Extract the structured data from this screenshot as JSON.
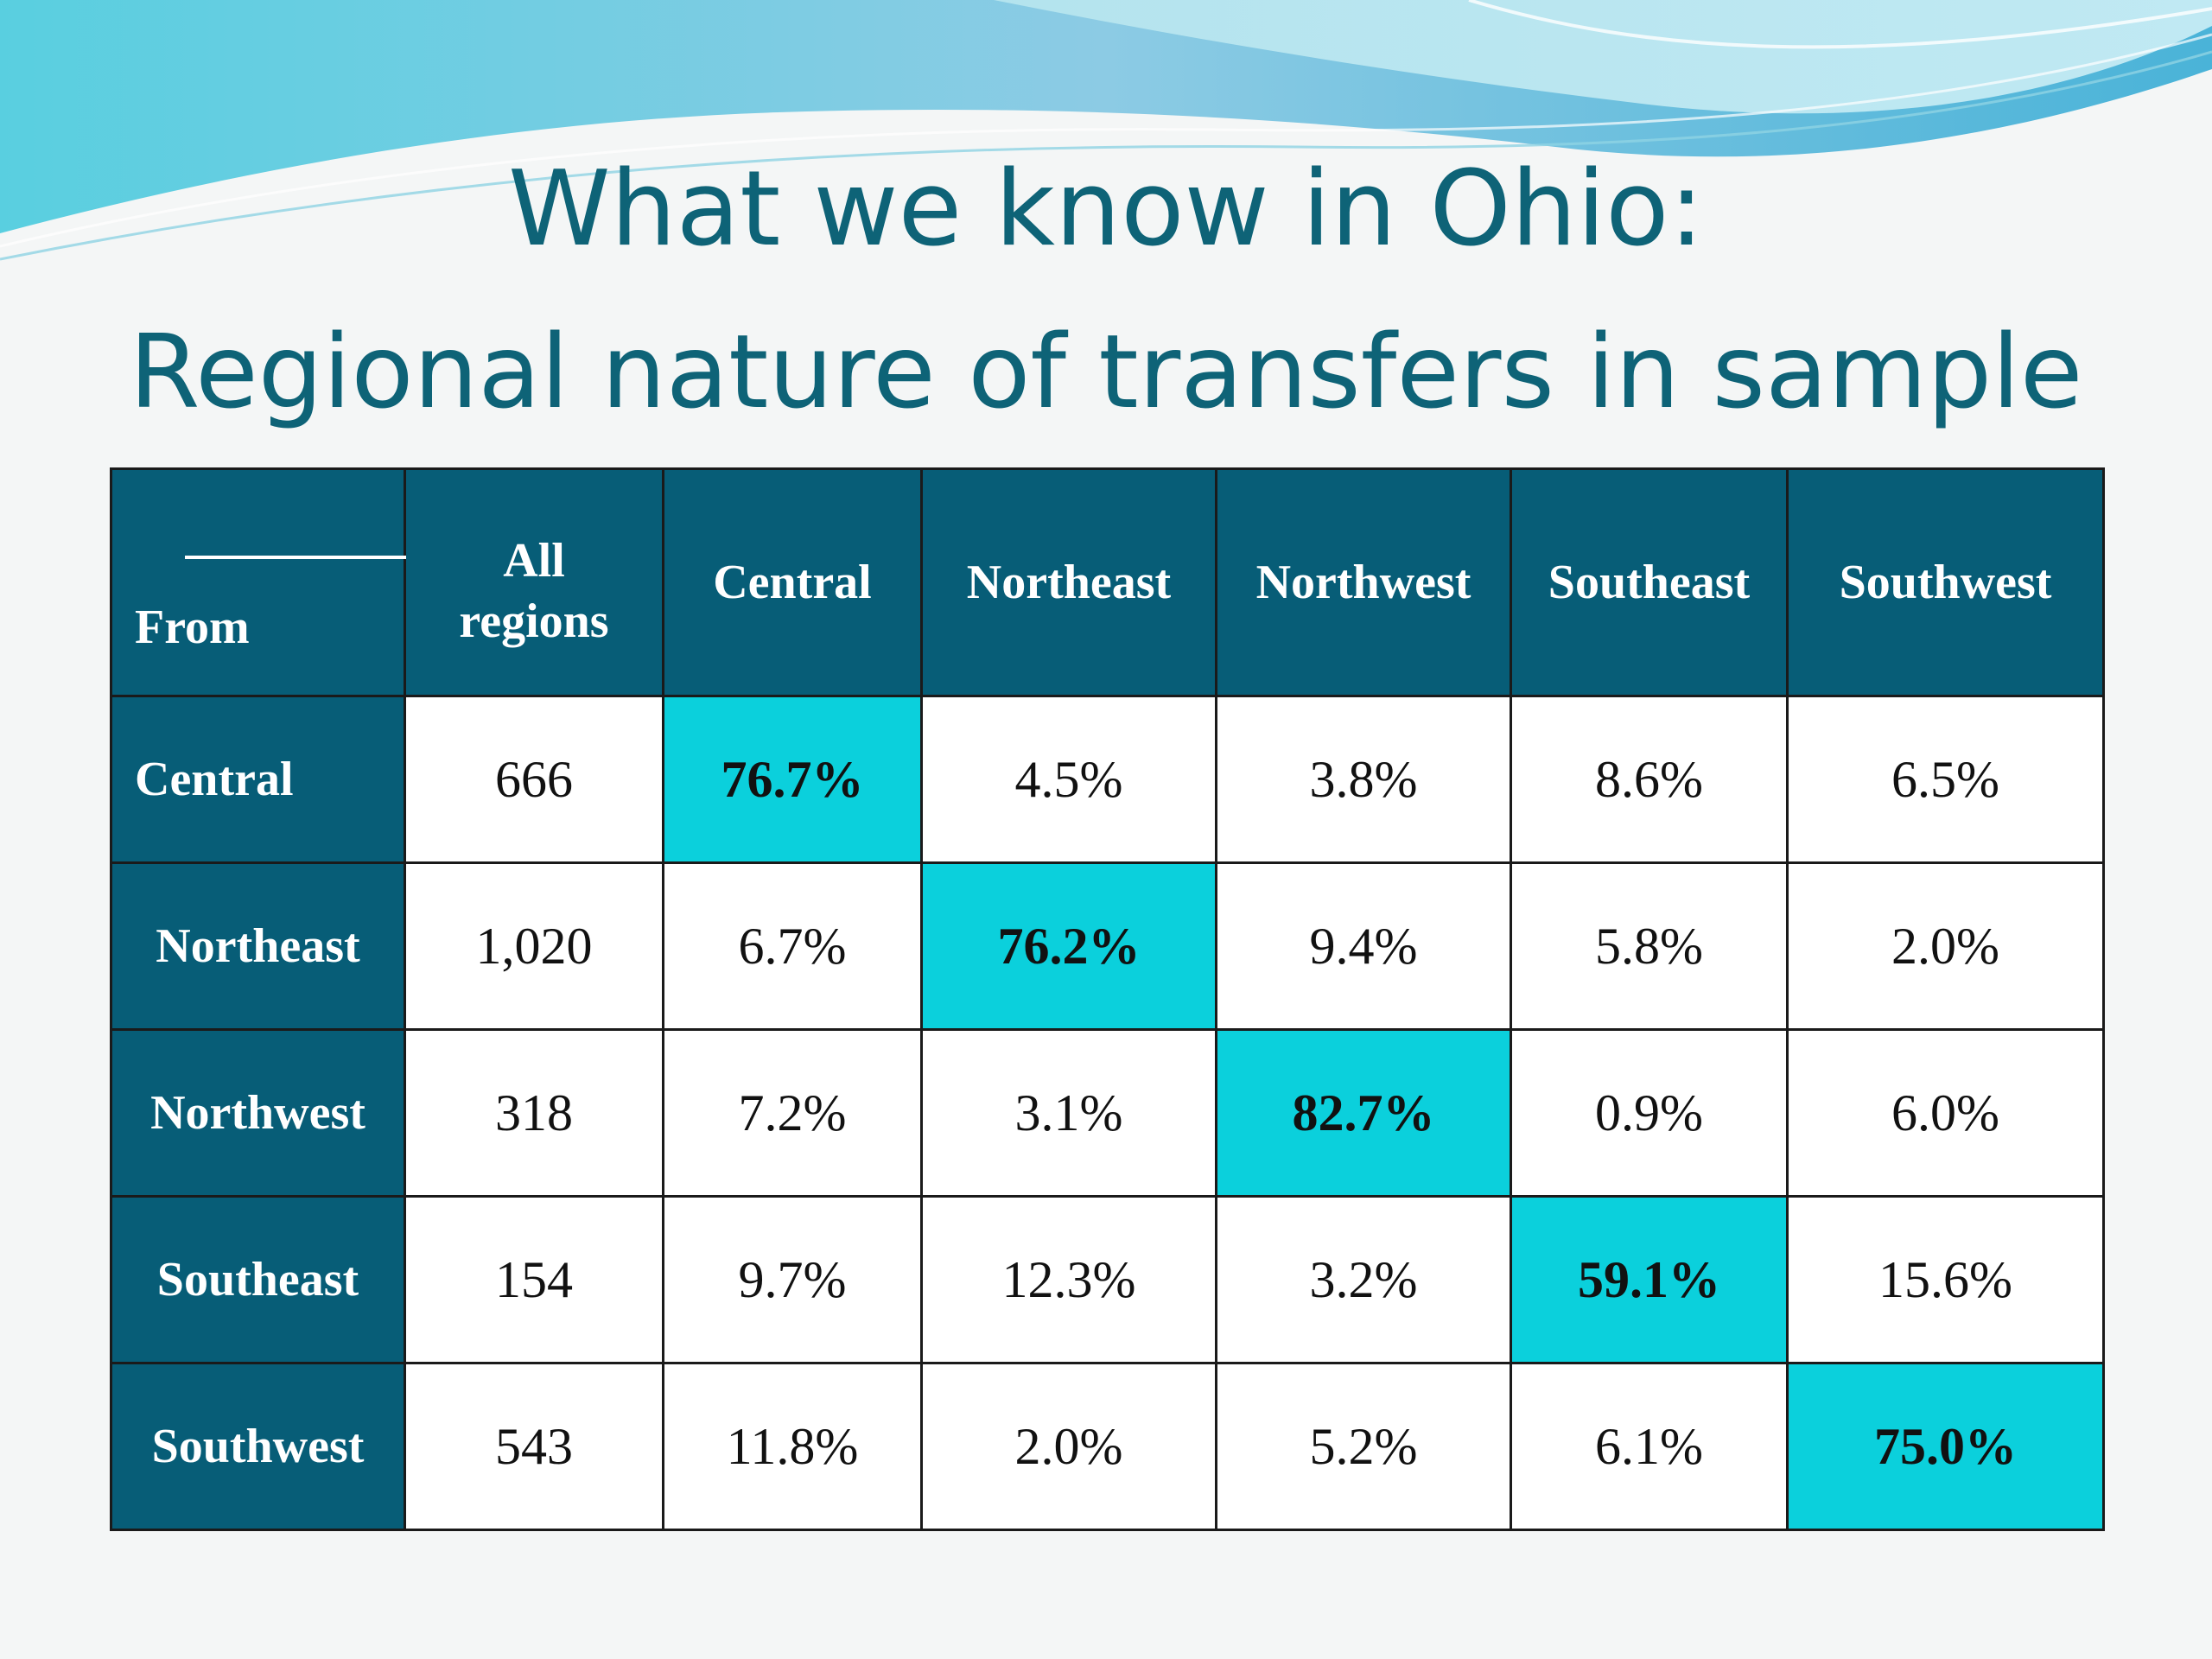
{
  "slide": {
    "title_line1": "What we know in Ohio:",
    "title_line2": "Regional nature of transfers in sample"
  },
  "table": {
    "corner_label": "From",
    "all_regions_line1": "All",
    "all_regions_line2": "regions",
    "columns": [
      "Central",
      "Northeast",
      "Northwest",
      "Southeast",
      "Southwest"
    ],
    "rows": [
      {
        "label": "Central",
        "count": "666",
        "values": [
          "76.7%",
          "4.5%",
          "3.8%",
          "8.6%",
          "6.5%"
        ]
      },
      {
        "label": "Northeast",
        "count": "1,020",
        "values": [
          "6.7%",
          "76.2%",
          "9.4%",
          "5.8%",
          "2.0%"
        ]
      },
      {
        "label": "Northwest",
        "count": "318",
        "values": [
          "7.2%",
          "3.1%",
          "82.7%",
          "0.9%",
          "6.0%"
        ]
      },
      {
        "label": "Southeast",
        "count": "154",
        "values": [
          "9.7%",
          "12.3%",
          "3.2%",
          "59.1%",
          "15.6%"
        ]
      },
      {
        "label": "Southwest",
        "count": "543",
        "values": [
          "11.8%",
          "2.0%",
          "5.2%",
          "6.1%",
          "75.0%"
        ]
      }
    ]
  },
  "colors": {
    "header_bg": "#075d77",
    "highlight_bg": "#0bd0dc",
    "title": "#0e6377"
  }
}
